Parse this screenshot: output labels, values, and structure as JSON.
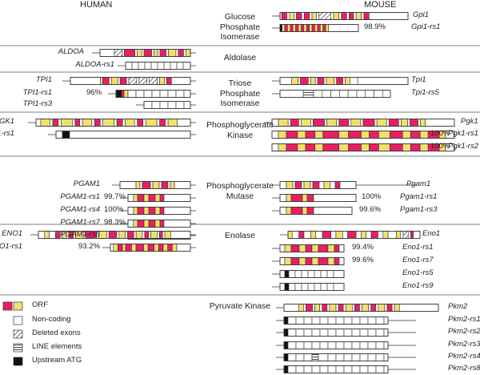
{
  "headers": {
    "human": "HUMAN",
    "mouse": "MOUSE"
  },
  "colors": {
    "orf_pink": "#e91e63",
    "orf_yellow": "#f3e06a",
    "noncoding": "#ffffff",
    "atg": "#111111",
    "line": "#333333"
  },
  "enzymes": {
    "glucose": "Glucose\nPhosphate\nIsomerase",
    "aldolase": "Aldolase",
    "triose": "Triose\nPhosphate\nIsomerase",
    "pgk": "Phosphoglycerate\nKinase",
    "pgam": "Phosphoglycerate\nMutase",
    "enolase": "Enolase",
    "pyruvate": "Pyruvate Kinase"
  },
  "legend": {
    "orf": "ORF",
    "noncoding": "Non-coding",
    "deleted": "Deleted exons",
    "line": "LINE elements",
    "atg": "Upstream ATG"
  },
  "genes": [
    {
      "name": "Gpi1",
      "side": "mouse",
      "pct": ""
    },
    {
      "name": "Gpi1-rs1",
      "side": "mouse",
      "pct": "98.9%"
    },
    {
      "name": "ALDOA",
      "side": "human",
      "pct": ""
    },
    {
      "name": "ALDOA-rs1",
      "side": "human",
      "pct": ""
    },
    {
      "name": "TPI1",
      "side": "human",
      "pct": ""
    },
    {
      "name": "TPI1-rs1",
      "side": "human",
      "pct": "96%"
    },
    {
      "name": "TPI1-rs3",
      "side": "human",
      "pct": ""
    },
    {
      "name": "Tpi1",
      "side": "mouse",
      "pct": ""
    },
    {
      "name": "Tpi1-rs5",
      "side": "mouse",
      "pct": ""
    },
    {
      "name": "PGK1",
      "side": "human",
      "pct": ""
    },
    {
      "name": "PGK1-rs1",
      "side": "human",
      "pct": ""
    },
    {
      "name": "Pgk1",
      "side": "mouse",
      "pct": ""
    },
    {
      "name": "Pgk1-rs1",
      "side": "mouse",
      "pct": "100%"
    },
    {
      "name": "Pgk1-rs2",
      "side": "mouse",
      "pct": "100%"
    },
    {
      "name": "PGAM1",
      "side": "human",
      "pct": ""
    },
    {
      "name": "PGAM1-rs1",
      "side": "human",
      "pct": "99.7%"
    },
    {
      "name": "PGAM1-rs4",
      "side": "human",
      "pct": "100%"
    },
    {
      "name": "PGAM1-rs7",
      "side": "human",
      "pct": "98.3%"
    },
    {
      "name": "PGAM1-rs6",
      "side": "human",
      "pct": ""
    },
    {
      "name": "Pgam1",
      "side": "mouse",
      "pct": ""
    },
    {
      "name": "Pgam1-rs1",
      "side": "mouse",
      "pct": "100%"
    },
    {
      "name": "Pgam1-rs3",
      "side": "mouse",
      "pct": "99.6%"
    },
    {
      "name": "ENO1",
      "side": "human",
      "pct": ""
    },
    {
      "name": "ENO1-rs1",
      "side": "human",
      "pct": "93.2%"
    },
    {
      "name": "Eno1",
      "side": "mouse",
      "pct": ""
    },
    {
      "name": "Eno1-rs1",
      "side": "mouse",
      "pct": "99.4%"
    },
    {
      "name": "Eno1-rs7",
      "side": "mouse",
      "pct": "99.6%"
    },
    {
      "name": "Eno1-rs5",
      "side": "mouse",
      "pct": ""
    },
    {
      "name": "Eno1-rs9",
      "side": "mouse",
      "pct": ""
    },
    {
      "name": "Pkm2",
      "side": "mouse",
      "pct": ""
    },
    {
      "name": "Pkm2-rs1",
      "side": "mouse",
      "pct": ""
    },
    {
      "name": "Pkm2-rs2",
      "side": "mouse",
      "pct": ""
    },
    {
      "name": "Pkm2-rs3",
      "side": "mouse",
      "pct": ""
    },
    {
      "name": "Pkm2-rs4",
      "side": "mouse",
      "pct": ""
    },
    {
      "name": "Pkm2-rs8",
      "side": "mouse",
      "pct": ""
    }
  ]
}
